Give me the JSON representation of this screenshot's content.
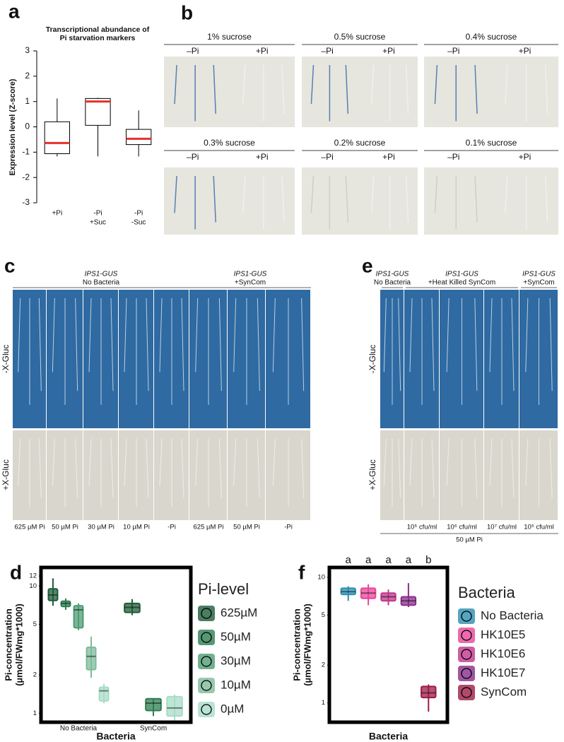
{
  "chart_data": [
    {
      "type": "box",
      "panel": "a",
      "title": [
        "Transcriptional abundance of",
        "Pi starvation markers"
      ],
      "y_label": "Expression level (Z-score)",
      "categories": [
        [
          "+Pi"
        ],
        [
          "-Pi",
          "+Suc"
        ],
        [
          "-Pi",
          "-Suc"
        ]
      ],
      "q1": [
        -1.06,
        0.06,
        -0.7
      ],
      "median": [
        -0.64,
        1.0,
        -0.47
      ],
      "q3": [
        0.2,
        1.12,
        -0.1
      ],
      "whisker_low": [
        -1.17,
        -1.17,
        -1.17
      ],
      "whisker_high": [
        1.12,
        1.15,
        0.65
      ],
      "box_color": "#ffffff",
      "median_color": "#e8302a",
      "ylim": [
        -3,
        3
      ],
      "yticks": [
        -3,
        -2,
        -1,
        0,
        1,
        2,
        3
      ]
    },
    {
      "type": "box",
      "panel": "d",
      "log_scale": true,
      "y_label": [
        "Pi-concentration",
        "(µmol/FWmg*1000)"
      ],
      "x_label": "Bacteria",
      "categories": [
        "No Bacteria",
        "SynCom"
      ],
      "legend_title": "Pi-level",
      "series": [
        {
          "name": "625µM",
          "color": "#1d5c3a",
          "q1": [
            7.7,
            6.2
          ],
          "median": [
            8.5,
            6.8
          ],
          "q3": [
            9.5,
            7.3
          ],
          "whisker_low": [
            7.0,
            5.9
          ],
          "whisker_high": [
            11.5,
            7.9
          ]
        },
        {
          "name": "50µM",
          "color": "#2e7d52",
          "q1": [
            6.9,
            1.05
          ],
          "median": [
            7.3,
            1.2
          ],
          "q3": [
            7.6,
            1.3
          ],
          "whisker_low": [
            6.5,
            0.95
          ],
          "whisker_high": [
            8,
            1.3
          ]
        },
        {
          "name": "30µM",
          "color": "#4f9c74",
          "q1": [
            4.7,
            null
          ],
          "median": [
            6.5,
            null
          ],
          "q3": [
            7.0,
            null
          ],
          "whisker_low": [
            4.5,
            null
          ],
          "whisker_high": [
            7.3,
            null
          ]
        },
        {
          "name": "10µM",
          "color": "#7dbb9b",
          "q1": [
            2.2,
            null
          ],
          "median": [
            2.8,
            null
          ],
          "q3": [
            3.3,
            null
          ],
          "whisker_low": [
            1.9,
            null
          ],
          "whisker_high": [
            4.0,
            null
          ]
        },
        {
          "name": "0µM",
          "color": "#a8dcc8",
          "q1": [
            1.25,
            0.95
          ],
          "median": [
            1.5,
            1.1
          ],
          "q3": [
            1.6,
            1.35
          ],
          "whisker_low": [
            1.2,
            0.88
          ],
          "whisker_high": [
            1.7,
            1.4
          ]
        }
      ],
      "ylim": [
        0.85,
        14
      ],
      "yticks": [
        1,
        2,
        5,
        10,
        12
      ]
    },
    {
      "type": "box",
      "panel": "f",
      "log_scale": true,
      "y_label": [
        "Pi-concentration",
        "(µmol/FWmg*1000)"
      ],
      "x_label": "Bacteria",
      "categories": [
        null
      ],
      "legend_title": "Bacteria",
      "letters": [
        "a",
        "a",
        "a",
        "a",
        "b"
      ],
      "series": [
        {
          "name": "No Bacteria",
          "color": "#2a8fb0",
          "q1": [
            7.3
          ],
          "median": [
            7.7
          ],
          "q3": [
            8.2
          ],
          "whisker_low": [
            6.5
          ],
          "whisker_high": [
            8.5
          ]
        },
        {
          "name": "HK10E5",
          "color": "#e8459a",
          "q1": [
            6.8
          ],
          "median": [
            7.5
          ],
          "q3": [
            8.2
          ],
          "whisker_low": [
            6.0
          ],
          "whisker_high": [
            8.8
          ]
        },
        {
          "name": "HK10E6",
          "color": "#c2368c",
          "q1": [
            6.5
          ],
          "median": [
            7.0
          ],
          "q3": [
            7.5
          ],
          "whisker_low": [
            6.0
          ],
          "whisker_high": [
            8.0
          ]
        },
        {
          "name": "HK10E7",
          "color": "#8a2c8a",
          "q1": [
            6.0
          ],
          "median": [
            6.5
          ],
          "q3": [
            7.0
          ],
          "whisker_low": [
            5.8
          ],
          "whisker_high": [
            9.0
          ]
        },
        {
          "name": "SynCom",
          "color": "#9e1b45",
          "q1": [
            1.1
          ],
          "median": [
            1.2
          ],
          "q3": [
            1.35
          ],
          "whisker_low": [
            0.85
          ],
          "whisker_high": [
            1.4
          ]
        }
      ],
      "ylim": [
        0.7,
        12
      ],
      "yticks": [
        1,
        2,
        5,
        10
      ]
    }
  ],
  "photo_panels": [
    {
      "panel": "b",
      "groups": [
        {
          "title": "1% sucrose",
          "labels": [
            "–Pi",
            "+Pi"
          ]
        },
        {
          "title": "0.5% sucrose",
          "labels": [
            "–Pi",
            "+Pi"
          ]
        },
        {
          "title": "0.4% sucrose",
          "labels": [
            "–Pi",
            "+Pi"
          ]
        },
        {
          "title": "0.3% sucrose",
          "labels": [
            "–Pi",
            "+Pi"
          ]
        },
        {
          "title": "0.2% sucrose",
          "labels": [
            "–Pi",
            "+Pi"
          ]
        },
        {
          "title": "0.1% sucrose",
          "labels": [
            "–Pi",
            "+Pi"
          ]
        }
      ]
    },
    {
      "panel": "c",
      "headers": [
        [
          "IPS1-GUS",
          "No Bacteria"
        ],
        [
          "IPS1-GUS",
          "+SynCom"
        ]
      ],
      "rows": [
        "-X-Gluc",
        "+X-Gluc"
      ],
      "columns": [
        "625 µM Pi",
        "50 µM Pi",
        "30 µM Pi",
        "10 µM Pi",
        "-Pi",
        "625 µM Pi",
        "50 µM Pi",
        "-Pi"
      ]
    },
    {
      "panel": "e",
      "headers": [
        [
          "IPS1-GUS",
          "No Bacteria"
        ],
        [
          "IPS1-GUS",
          "+Heat Killed SynCom"
        ],
        [
          "IPS1-GUS",
          "+SynCom"
        ]
      ],
      "rows": [
        "-X-Gluc",
        "+X-Gluc"
      ],
      "columns": [
        null,
        "10⁵ cfu/ml",
        "10⁶ cfu/ml",
        "10⁷ cfu/ml",
        "10⁵ cfu/ml"
      ],
      "footer": "50 µM Pi"
    }
  ]
}
